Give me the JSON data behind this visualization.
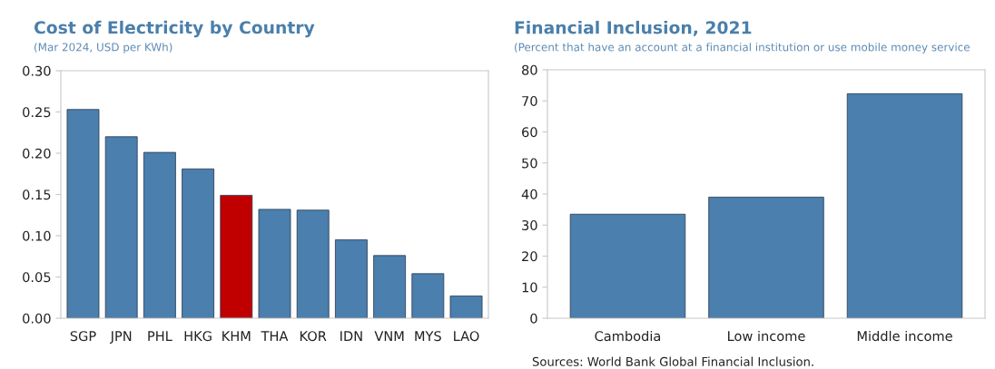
{
  "chart_data": [
    {
      "type": "bar",
      "title": "Cost of Electricity by Country",
      "subtitle": "(Mar 2024, USD per KWh)",
      "categories": [
        "SGP",
        "JPN",
        "PHL",
        "HKG",
        "KHM",
        "THA",
        "KOR",
        "IDN",
        "VNM",
        "MYS",
        "LAO"
      ],
      "values": [
        0.253,
        0.22,
        0.201,
        0.181,
        0.149,
        0.132,
        0.131,
        0.095,
        0.076,
        0.054,
        0.027
      ],
      "colors": [
        "#4a7fae",
        "#4a7fae",
        "#4a7fae",
        "#4a7fae",
        "#c00000",
        "#4a7fae",
        "#4a7fae",
        "#4a7fae",
        "#4a7fae",
        "#4a7fae",
        "#4a7fae"
      ],
      "ylim": [
        0,
        0.3
      ],
      "yticks": [
        {
          "value": 0,
          "label": "0.00"
        },
        {
          "value": 0.05,
          "label": "0.05"
        },
        {
          "value": 0.1,
          "label": "0.10"
        },
        {
          "value": 0.15,
          "label": "0.15"
        },
        {
          "value": 0.2,
          "label": "0.20"
        },
        {
          "value": 0.25,
          "label": "0.25"
        },
        {
          "value": 0.3,
          "label": "0.30"
        }
      ],
      "grid": false
    },
    {
      "type": "bar",
      "title": "Financial Inclusion, 2021",
      "subtitle": "(Percent that have an account at a financial institution or use mobile money service",
      "categories": [
        "Cambodia",
        "Low income",
        "Middle income"
      ],
      "values": [
        33.5,
        39,
        72.3
      ],
      "colors": [
        "#4a7fae",
        "#4a7fae",
        "#4a7fae"
      ],
      "ylim": [
        0,
        80
      ],
      "yticks": [
        0,
        10,
        20,
        30,
        40,
        50,
        60,
        70,
        80
      ],
      "grid": false,
      "annotations": [
        "Sources: World Bank Global Financial Inclusion."
      ]
    }
  ]
}
